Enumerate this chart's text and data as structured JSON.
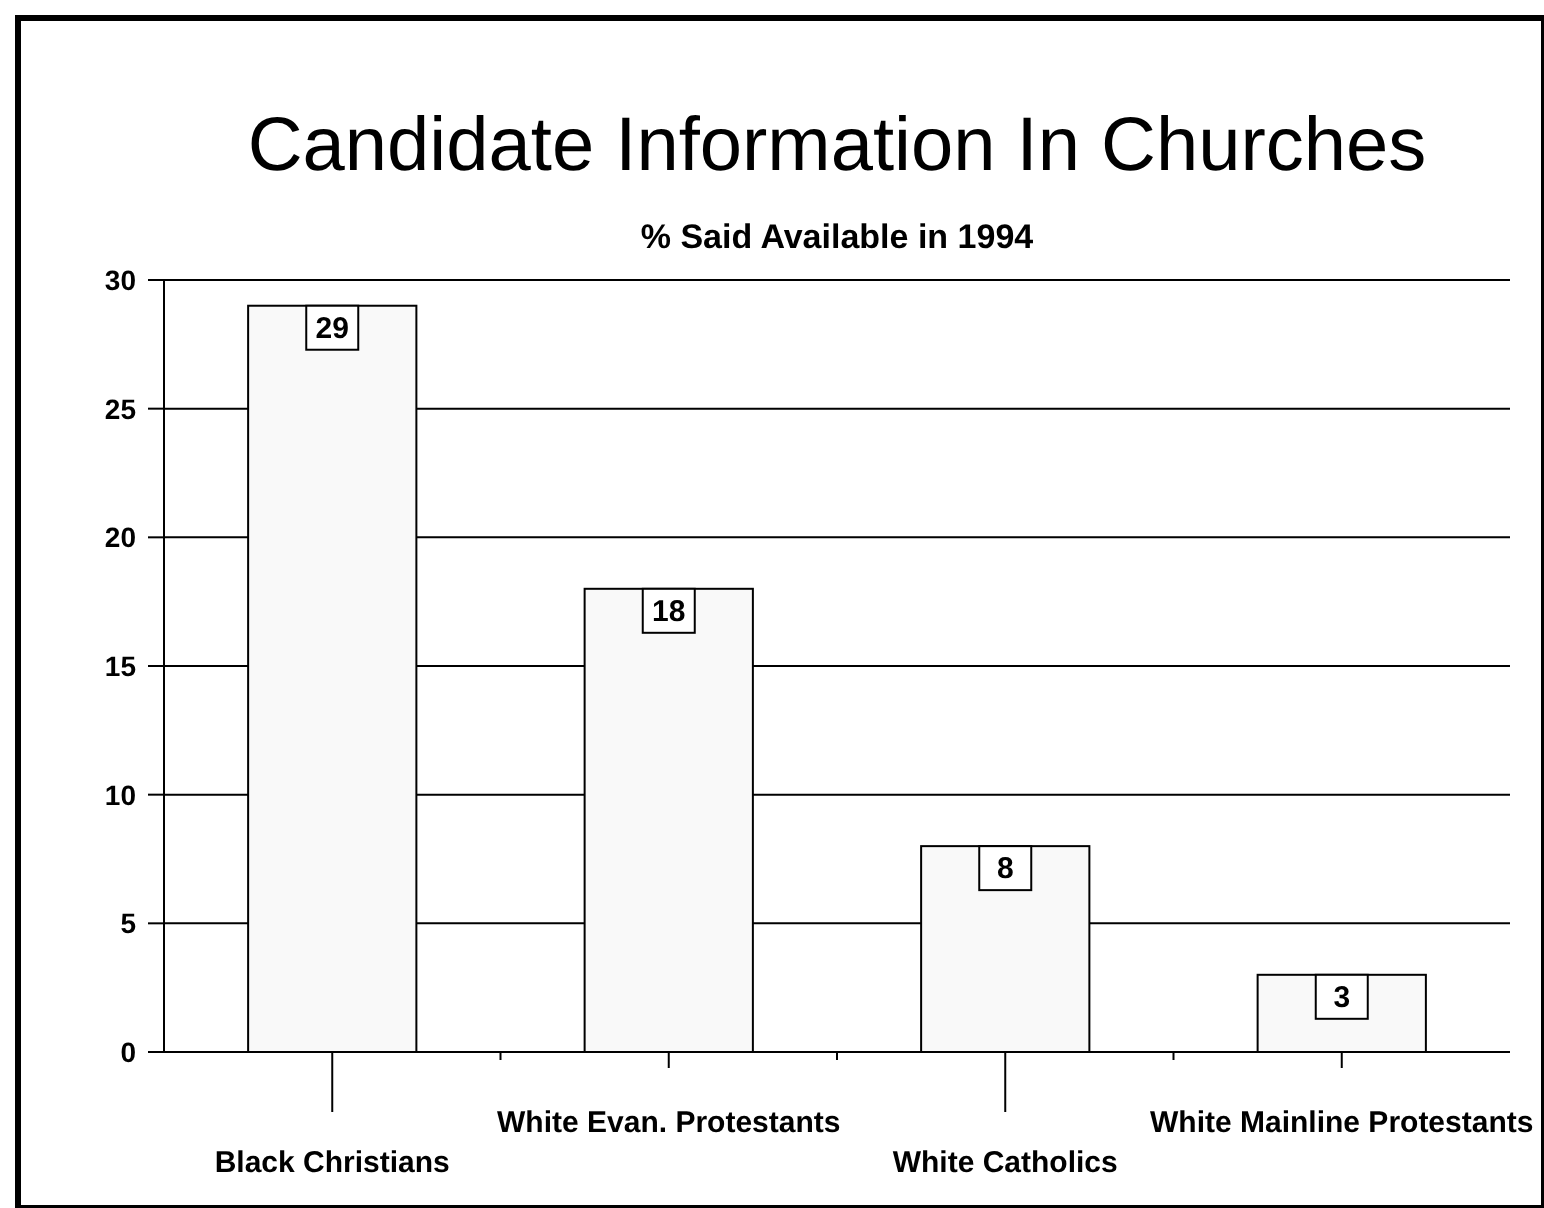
{
  "chart_data": {
    "type": "bar",
    "title": "Candidate Information In Churches",
    "subtitle": "% Said Available in 1994",
    "categories": [
      "Black Christians",
      "White Evan. Protestants",
      "White Catholics",
      "White Mainline Protestants"
    ],
    "values": [
      29,
      18,
      8,
      3
    ],
    "color": "#f9f9f9",
    "ylim": [
      0,
      30
    ],
    "yticks": [
      0,
      5,
      10,
      15,
      20,
      25,
      30
    ],
    "grid": "y",
    "data_labels": true
  }
}
